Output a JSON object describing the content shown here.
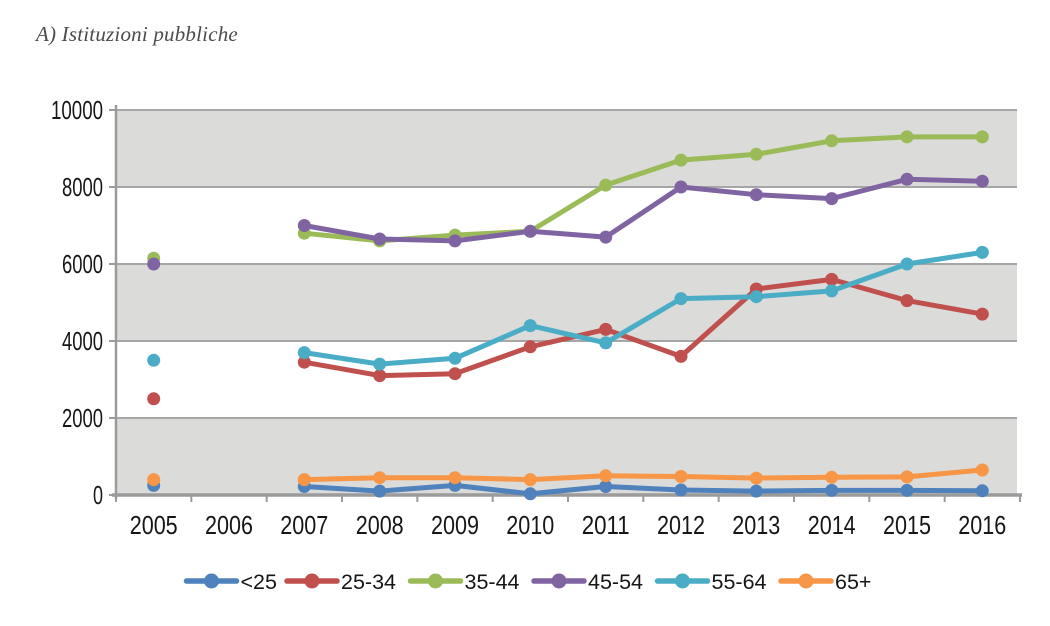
{
  "title": "A) Istituzioni pubbliche",
  "chart_data": {
    "type": "line",
    "title": "A) Istituzioni pubbliche",
    "xlabel": "",
    "ylabel": "",
    "categories": [
      "2005",
      "2006",
      "2007",
      "2008",
      "2009",
      "2010",
      "2011",
      "2012",
      "2013",
      "2014",
      "2015",
      "2016"
    ],
    "series": [
      {
        "name": "<25",
        "color": "#4F81BD",
        "values": [
          250,
          null,
          220,
          100,
          250,
          30,
          220,
          130,
          100,
          120,
          120,
          110
        ]
      },
      {
        "name": "25-34",
        "color": "#C0504D",
        "values": [
          2500,
          null,
          3450,
          3100,
          3150,
          3850,
          4300,
          3600,
          5350,
          5600,
          5050,
          4700
        ]
      },
      {
        "name": "35-44",
        "color": "#9BBB59",
        "values": [
          6150,
          null,
          6800,
          6600,
          6750,
          6850,
          8050,
          8700,
          8850,
          9200,
          9300,
          9300
        ]
      },
      {
        "name": "45-54",
        "color": "#8064A2",
        "values": [
          6000,
          null,
          7000,
          6650,
          6600,
          6850,
          6700,
          8000,
          7800,
          7700,
          8200,
          8150
        ]
      },
      {
        "name": "55-64",
        "color": "#4BACC6",
        "values": [
          3500,
          null,
          3700,
          3400,
          3550,
          4400,
          3950,
          5100,
          5150,
          5300,
          6000,
          6300
        ]
      },
      {
        "name": "65+",
        "color": "#F79646",
        "values": [
          400,
          null,
          400,
          450,
          450,
          400,
          500,
          480,
          440,
          460,
          470,
          650
        ]
      }
    ],
    "ylim": [
      0,
      10000
    ],
    "yticks": [
      0,
      2000,
      4000,
      6000,
      8000,
      10000
    ],
    "grid": "horizontal",
    "plot_band_fill": "#DBDBD9",
    "gridline_color": "#A6A6A6",
    "axis_color": "#9B9B9B",
    "legend_position": "bottom",
    "note": "no data for 2006; 2005 shown as isolated markers"
  }
}
